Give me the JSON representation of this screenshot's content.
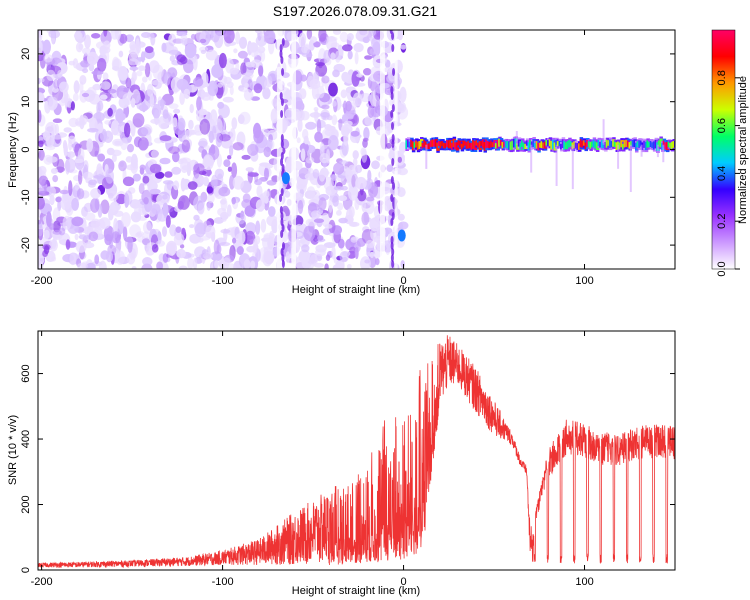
{
  "title": "S197.2026.078.09.31.G21",
  "chart_data": [
    {
      "type": "heatmap",
      "name": "spectrogram",
      "xlabel": "Height of straight line (km)",
      "ylabel": "Frequency (Hz)",
      "xlim": [
        -202,
        150
      ],
      "ylim": [
        -25,
        25
      ],
      "x_ticks": [
        -200,
        -100,
        0,
        100
      ],
      "y_ticks": [
        -20,
        -10,
        0,
        10,
        20
      ],
      "colorbar": {
        "label": "Normalized spectral amplitude",
        "range": [
          0.0,
          1.0
        ],
        "ticks": [
          0.0,
          0.2,
          0.4,
          0.6,
          0.8
        ],
        "tick_labels": [
          "0.0",
          "0.2",
          "0.4",
          "0.6",
          "0.8"
        ],
        "colors": [
          "#ffffff",
          "#cc99ff",
          "#9933ff",
          "#3300ff",
          "#00ccff",
          "#00ff66",
          "#ccff00",
          "#ff9900",
          "#ff0000",
          "#ff0066"
        ]
      },
      "noise_region": {
        "x_range": [
          -202,
          0
        ],
        "amplitude": "0.0-0.2",
        "color": "purple"
      },
      "signal_band": {
        "x_range": [
          0,
          150
        ],
        "frequency_hz": 1,
        "peak_amplitude": 1.0,
        "peak_x_range": [
          10,
          50
        ],
        "note": "narrow horizontal band near 0-2 Hz with peaks up to red"
      },
      "features": [
        {
          "x": -65,
          "y": -6,
          "amplitude": 0.4
        },
        {
          "x": -1,
          "y": -18,
          "amplitude": 0.4
        }
      ]
    },
    {
      "type": "line",
      "name": "snr",
      "xlabel": "Height of straight line (km)",
      "ylabel": "SNR (10 * v/v)",
      "xlim": [
        -202,
        150
      ],
      "ylim": [
        0,
        730
      ],
      "x_ticks": [
        -200,
        -100,
        0,
        100
      ],
      "y_ticks": [
        0,
        200,
        400,
        600
      ],
      "color": "#ee3333",
      "envelope": {
        "x": [
          -202,
          -180,
          -150,
          -120,
          -100,
          -80,
          -60,
          -40,
          -20,
          -10,
          0,
          10,
          20,
          25,
          30,
          40,
          50,
          60,
          65,
          68,
          70,
          72,
          80,
          90,
          100,
          110,
          120,
          130,
          140,
          150
        ],
        "upper": [
          22,
          25,
          30,
          40,
          60,
          95,
          180,
          250,
          330,
          470,
          540,
          620,
          700,
          720,
          690,
          620,
          520,
          420,
          340,
          320,
          130,
          160,
          370,
          460,
          450,
          420,
          420,
          440,
          450,
          440
        ],
        "lower": [
          8,
          8,
          10,
          12,
          15,
          15,
          15,
          15,
          20,
          20,
          25,
          30,
          500,
          560,
          560,
          480,
          410,
          380,
          310,
          290,
          20,
          20,
          20,
          20,
          20,
          20,
          20,
          20,
          20,
          20
        ]
      }
    }
  ]
}
